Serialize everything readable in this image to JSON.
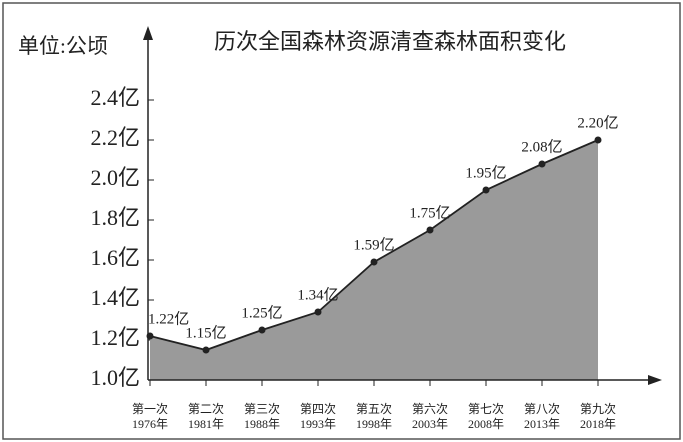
{
  "chart_data": {
    "type": "area",
    "title": "历次全国森林资源清查森林面积变化",
    "y_label": "单位:公顷",
    "categories": [
      "第一次\n1976年",
      "第二次\n1981年",
      "第三次\n1988年",
      "第四次\n1993年",
      "第五次\n1998年",
      "第六次\n2003年",
      "第七次\n2008年",
      "第八次\n2013年",
      "第九次\n2018年"
    ],
    "values": [
      1.22,
      1.15,
      1.25,
      1.34,
      1.59,
      1.75,
      1.95,
      2.08,
      2.2
    ],
    "value_labels": [
      "1.22亿",
      "1.15亿",
      "1.25亿",
      "1.34亿",
      "1.59亿",
      "1.75亿",
      "1.95亿",
      "2.08亿",
      "2.20亿"
    ],
    "color": "#9a9a9a",
    "line_color": "#222222",
    "ylim": [
      1.0,
      2.4
    ],
    "yticks": [
      {
        "value": 1.0,
        "label": "1.0亿"
      },
      {
        "value": 1.2,
        "label": "1.2亿"
      },
      {
        "value": 1.4,
        "label": "1.4亿"
      },
      {
        "value": 1.6,
        "label": "1.6亿"
      },
      {
        "value": 1.8,
        "label": "1.8亿"
      },
      {
        "value": 2.0,
        "label": "2.0亿"
      },
      {
        "value": 2.2,
        "label": "2.2亿"
      },
      {
        "value": 2.4,
        "label": "2.4亿"
      }
    ]
  }
}
